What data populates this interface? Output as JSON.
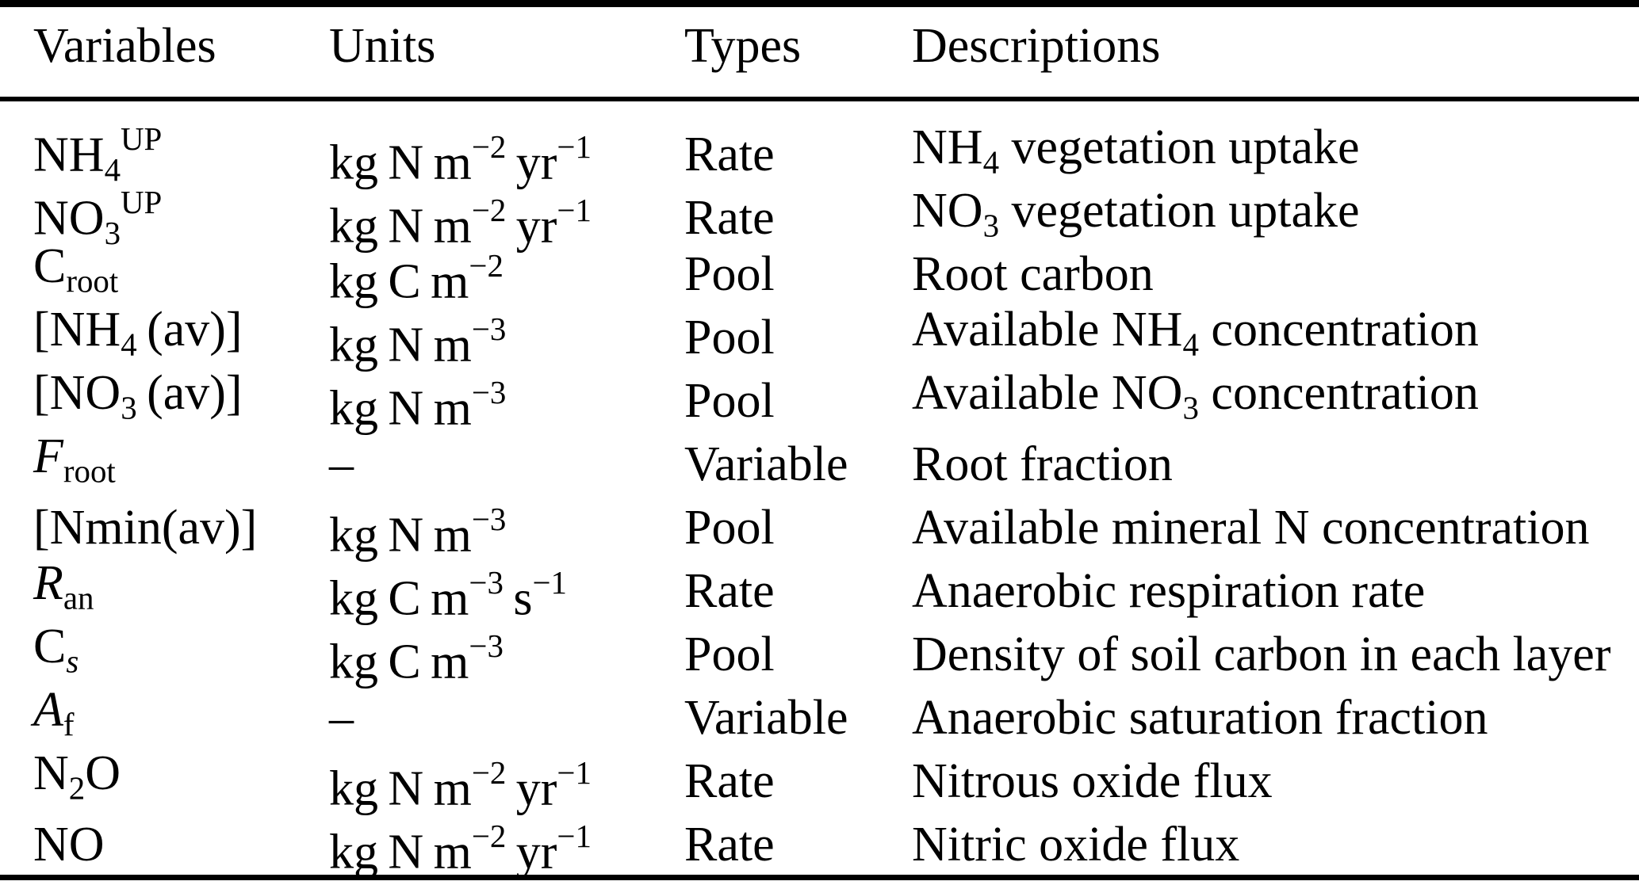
{
  "colors": {
    "text": "#000000",
    "background": "#ffffff",
    "rule": "#000000"
  },
  "table": {
    "columns": [
      "Variables",
      "Units",
      "Types",
      "Descriptions"
    ],
    "rows": [
      {
        "variable": [
          {
            "t": "NH"
          },
          {
            "t": "4",
            "s": "sub"
          },
          {
            "t": "UP",
            "s": "sup"
          }
        ],
        "units": [
          {
            "t": "kg N m"
          },
          {
            "t": "−2",
            "s": "sup"
          },
          {
            "t": " yr"
          },
          {
            "t": "−1",
            "s": "sup"
          }
        ],
        "type": "Rate",
        "description": [
          {
            "t": "NH"
          },
          {
            "t": "4",
            "s": "sub"
          },
          {
            "t": " vegetation uptake"
          }
        ]
      },
      {
        "variable": [
          {
            "t": "NO"
          },
          {
            "t": "3",
            "s": "sub"
          },
          {
            "t": "UP",
            "s": "sup"
          }
        ],
        "units": [
          {
            "t": "kg N m"
          },
          {
            "t": "−2",
            "s": "sup"
          },
          {
            "t": " yr"
          },
          {
            "t": "−1",
            "s": "sup"
          }
        ],
        "type": "Rate",
        "description": [
          {
            "t": "NO"
          },
          {
            "t": "3",
            "s": "sub"
          },
          {
            "t": " vegetation uptake"
          }
        ]
      },
      {
        "variable": [
          {
            "t": "C"
          },
          {
            "t": "root",
            "s": "sub"
          }
        ],
        "units": [
          {
            "t": "kg C m"
          },
          {
            "t": "−2",
            "s": "sup"
          }
        ],
        "type": "Pool",
        "description": [
          {
            "t": "Root carbon"
          }
        ]
      },
      {
        "variable": [
          {
            "t": "[NH"
          },
          {
            "t": "4",
            "s": "sub"
          },
          {
            "t": " (av)]"
          }
        ],
        "units": [
          {
            "t": "kg N m"
          },
          {
            "t": "−3",
            "s": "sup"
          }
        ],
        "type": "Pool",
        "description": [
          {
            "t": "Available NH"
          },
          {
            "t": "4",
            "s": "sub"
          },
          {
            "t": " concentration"
          }
        ]
      },
      {
        "variable": [
          {
            "t": "[NO"
          },
          {
            "t": "3",
            "s": "sub"
          },
          {
            "t": " (av)]"
          }
        ],
        "units": [
          {
            "t": "kg N m"
          },
          {
            "t": "−3",
            "s": "sup"
          }
        ],
        "type": "Pool",
        "description": [
          {
            "t": "Available NO"
          },
          {
            "t": "3",
            "s": "sub"
          },
          {
            "t": " concentration"
          }
        ]
      },
      {
        "variable": [
          {
            "t": "F",
            "s": "i"
          },
          {
            "t": "root",
            "s": "sub"
          }
        ],
        "units": [
          {
            "t": "–"
          }
        ],
        "type": "Variable",
        "description": [
          {
            "t": "Root fraction"
          }
        ]
      },
      {
        "variable": [
          {
            "t": "[Nmin(av)]"
          }
        ],
        "units": [
          {
            "t": "kg N m"
          },
          {
            "t": "−3",
            "s": "sup"
          }
        ],
        "type": "Pool",
        "description": [
          {
            "t": "Available mineral N concentration"
          }
        ]
      },
      {
        "variable": [
          {
            "t": "R",
            "s": "i"
          },
          {
            "t": "an",
            "s": "sub"
          }
        ],
        "units": [
          {
            "t": "kg C m"
          },
          {
            "t": "−3",
            "s": "sup"
          },
          {
            "t": " s"
          },
          {
            "t": "−1",
            "s": "sup"
          }
        ],
        "type": "Rate",
        "description": [
          {
            "t": "Anaerobic respiration rate"
          }
        ]
      },
      {
        "variable": [
          {
            "t": "C"
          },
          {
            "t": "s",
            "s": "subi"
          }
        ],
        "units": [
          {
            "t": "kg C m"
          },
          {
            "t": "−3",
            "s": "sup"
          }
        ],
        "type": "Pool",
        "description": [
          {
            "t": "Density of soil carbon in each layer"
          }
        ]
      },
      {
        "variable": [
          {
            "t": "A",
            "s": "i"
          },
          {
            "t": "f",
            "s": "sub"
          }
        ],
        "units": [
          {
            "t": "–"
          }
        ],
        "type": "Variable",
        "description": [
          {
            "t": "Anaerobic saturation fraction"
          }
        ]
      },
      {
        "variable": [
          {
            "t": "N"
          },
          {
            "t": "2",
            "s": "sub"
          },
          {
            "t": "O"
          }
        ],
        "units": [
          {
            "t": "kg N m"
          },
          {
            "t": "−2",
            "s": "sup"
          },
          {
            "t": " yr"
          },
          {
            "t": "−1",
            "s": "sup"
          }
        ],
        "type": "Rate",
        "description": [
          {
            "t": "Nitrous oxide flux"
          }
        ]
      },
      {
        "variable": [
          {
            "t": "NO"
          }
        ],
        "units": [
          {
            "t": "kg N m"
          },
          {
            "t": "−2",
            "s": "sup"
          },
          {
            "t": " yr"
          },
          {
            "t": "−1",
            "s": "sup"
          }
        ],
        "type": "Rate",
        "description": [
          {
            "t": "Nitric oxide flux"
          }
        ]
      }
    ]
  }
}
